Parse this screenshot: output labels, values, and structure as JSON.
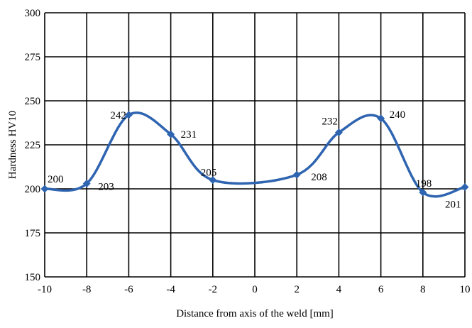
{
  "chart_data": {
    "type": "line",
    "title": "",
    "xlabel": "Distance from axis of the weld [mm]",
    "ylabel": "Hardness HV10",
    "xlim": [
      -10,
      10
    ],
    "ylim": [
      150,
      300
    ],
    "x_ticks": [
      -10,
      -8,
      -6,
      -4,
      -2,
      0,
      2,
      4,
      6,
      8,
      10
    ],
    "y_ticks": [
      150,
      175,
      200,
      225,
      250,
      275,
      300
    ],
    "x_tick_labels": [
      "-10",
      "-8",
      "-6",
      "-4",
      "-2",
      "0",
      "2",
      "4",
      "6",
      "8",
      "10"
    ],
    "y_tick_labels": [
      "150",
      "175",
      "200",
      "225",
      "250",
      "275",
      "300"
    ],
    "grid": true,
    "smooth": true,
    "line_color": "#2e64b0",
    "series": [
      {
        "x": [
          -10,
          -8,
          -6,
          -4,
          -2,
          2,
          4,
          6,
          8,
          10
        ],
        "values": [
          200,
          203,
          242,
          231,
          205,
          208,
          232,
          240,
          198,
          201
        ],
        "labels": [
          "200",
          "203",
          "242",
          "231",
          "205",
          "208",
          "232",
          "240",
          "198",
          "201"
        ]
      }
    ]
  }
}
